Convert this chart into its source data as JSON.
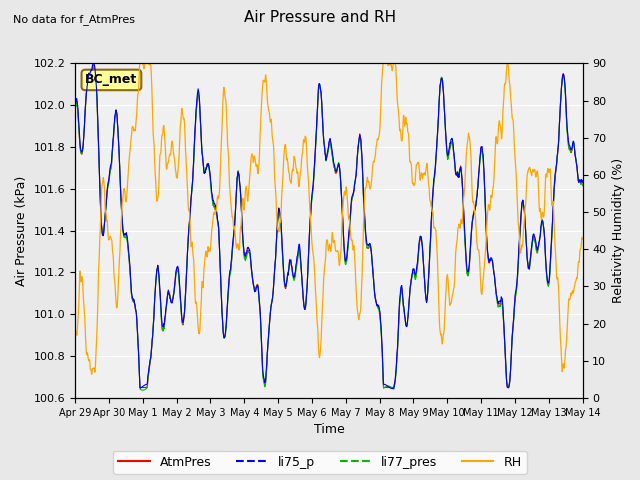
{
  "title": "Air Pressure and RH",
  "top_left_text": "No data for f_AtmPres",
  "bc_met_label": "BC_met",
  "xlabel": "Time",
  "ylabel_left": "Air Pressure (kPa)",
  "ylabel_right": "Relativity Humidity (%)",
  "ylim_left": [
    100.6,
    102.2
  ],
  "ylim_right": [
    0,
    90
  ],
  "yticks_left": [
    100.6,
    100.8,
    101.0,
    101.2,
    101.4,
    101.6,
    101.8,
    102.0,
    102.2
  ],
  "yticks_right": [
    0,
    10,
    20,
    30,
    40,
    50,
    60,
    70,
    80,
    90
  ],
  "xtick_labels": [
    "Apr 29",
    "Apr 30",
    "May 1",
    "May 2",
    "May 3",
    "May 4",
    "May 5",
    "May 6",
    "May 7",
    "May 8",
    "May 9",
    "May 10",
    "May 11",
    "May 12",
    "May 13",
    "May 14"
  ],
  "line_colors": {
    "AtmPres": "#ff0000",
    "li75_p": "#0000ff",
    "li77_pres": "#00bb00",
    "RH": "#ffa500"
  },
  "legend_entries": [
    "AtmPres",
    "li75_p",
    "li77_pres",
    "RH"
  ],
  "background_color": "#e8e8e8",
  "plot_bg_color": "#f0f0f0",
  "bc_met_box_color": "#ffff99",
  "bc_met_box_edge": "#8b6914"
}
